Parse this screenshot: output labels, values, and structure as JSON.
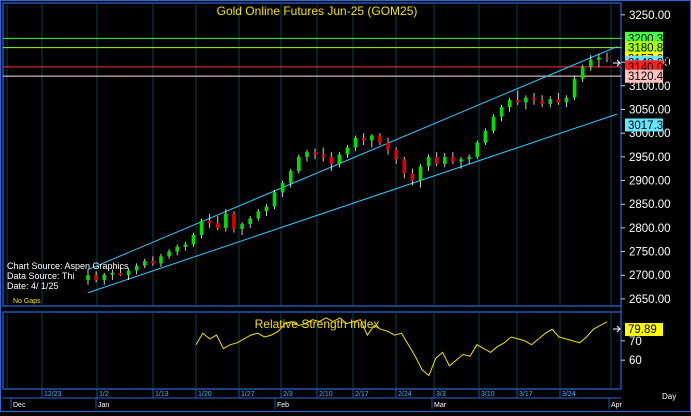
{
  "chart_title": "Gold Online Futures Jun-25 (GOM25)",
  "rsi_title": "Relative Strength Index",
  "source_lines": [
    "Chart Source: Aspen Graphics",
    "Data Source: Thi",
    "Date:   4/ 1/25"
  ],
  "no_gaps": "No Gaps",
  "period": "Day",
  "colors": {
    "border": "#2a6ad8",
    "grid": "#0a4f60",
    "up_candle": "#00e000",
    "down_candle": "#e00000",
    "channel": "#30c8ff",
    "title": "#f2e200",
    "rsi_line": "#f2e200"
  },
  "price_axis_ticks": [
    "3250.00",
    "3150.00",
    "3100.00",
    "3050.00",
    "3000.00",
    "2950.00",
    "2900.00",
    "2850.00",
    "2800.00",
    "2750.00",
    "2700.00",
    "2650.00"
  ],
  "price_labels": [
    {
      "text": "3200.33",
      "value": 3200.33,
      "bg": "#44ff44",
      "fg": "#000000",
      "line": "#33ff33"
    },
    {
      "text": "3180.83",
      "value": 3180.83,
      "bg": "#aaff00",
      "fg": "#000000",
      "line": "#9dff00"
    },
    {
      "text": "3157.60",
      "value": 3157.6,
      "bg": "#ffff00",
      "fg": "#000000",
      "line": null
    },
    {
      "text": "3149.63",
      "value": 3149.63,
      "bg": "#66e4ff",
      "fg": "#000000",
      "line": null
    },
    {
      "text": "3140.00",
      "value": 3140.0,
      "bg": "#ff2020",
      "fg": "#000000",
      "line": "#ff3030"
    },
    {
      "text": "3120.42",
      "value": 3120.42,
      "bg": "#ffc0c0",
      "fg": "#000000",
      "line": "#ffe0e0"
    },
    {
      "text": "3017.37",
      "value": 3017.37,
      "bg": "#66e4ff",
      "fg": "#000000",
      "line": null
    }
  ],
  "x_axis_dates": [
    "12/23",
    "1/2",
    "1/13",
    "1/20",
    "1/27",
    "2/3",
    "2/10",
    "2/17",
    "2/24",
    "3/3",
    "3/10",
    "3/17",
    "3/24"
  ],
  "x_axis_months": [
    "Dec",
    "Jan",
    "Feb",
    "Mar",
    "Apr"
  ],
  "rsi_ticks": [
    "70",
    "60"
  ],
  "rsi_value_label": "79.89",
  "chart_data": [
    {
      "type": "candlestick",
      "title": "Gold Online Futures Jun-25 (GOM25)",
      "ylim": [
        2635,
        3275
      ],
      "channel": {
        "upper": [
          {
            "i": 0,
            "v": 2712
          },
          {
            "i": 64,
            "v": 3170
          }
        ],
        "lower": [
          {
            "i": 0,
            "v": 2663
          },
          {
            "i": 64,
            "v": 3030
          }
        ]
      },
      "candles": [
        [
          2690,
          2712,
          2680,
          2700
        ],
        [
          2700,
          2708,
          2685,
          2690
        ],
        [
          2690,
          2705,
          2680,
          2701
        ],
        [
          2701,
          2712,
          2690,
          2705
        ],
        [
          2705,
          2716,
          2698,
          2700
        ],
        [
          2700,
          2715,
          2690,
          2710
        ],
        [
          2710,
          2725,
          2702,
          2720
        ],
        [
          2720,
          2735,
          2715,
          2730
        ],
        [
          2730,
          2740,
          2720,
          2725
        ],
        [
          2725,
          2745,
          2718,
          2740
        ],
        [
          2740,
          2755,
          2735,
          2750
        ],
        [
          2750,
          2765,
          2742,
          2760
        ],
        [
          2760,
          2770,
          2752,
          2765
        ],
        [
          2765,
          2790,
          2760,
          2785
        ],
        [
          2785,
          2820,
          2778,
          2815
        ],
        [
          2815,
          2830,
          2800,
          2810
        ],
        [
          2810,
          2825,
          2795,
          2800
        ],
        [
          2800,
          2840,
          2792,
          2830
        ],
        [
          2830,
          2835,
          2790,
          2798
        ],
        [
          2798,
          2812,
          2785,
          2808
        ],
        [
          2808,
          2825,
          2800,
          2820
        ],
        [
          2820,
          2840,
          2815,
          2835
        ],
        [
          2835,
          2850,
          2825,
          2845
        ],
        [
          2845,
          2880,
          2840,
          2875
        ],
        [
          2875,
          2900,
          2865,
          2895
        ],
        [
          2895,
          2925,
          2885,
          2920
        ],
        [
          2920,
          2955,
          2915,
          2950
        ],
        [
          2950,
          2965,
          2940,
          2960
        ],
        [
          2960,
          2968,
          2945,
          2955
        ],
        [
          2955,
          2970,
          2940,
          2950
        ],
        [
          2950,
          2960,
          2920,
          2935
        ],
        [
          2935,
          2960,
          2928,
          2955
        ],
        [
          2955,
          2975,
          2948,
          2970
        ],
        [
          2970,
          2995,
          2962,
          2990
        ],
        [
          2990,
          3000,
          2975,
          2985
        ],
        [
          2985,
          2998,
          2970,
          2995
        ],
        [
          2995,
          3000,
          2975,
          2980
        ],
        [
          2980,
          2990,
          2955,
          2965
        ],
        [
          2965,
          2970,
          2935,
          2945
        ],
        [
          2945,
          2950,
          2905,
          2915
        ],
        [
          2915,
          2925,
          2890,
          2900
        ],
        [
          2900,
          2935,
          2885,
          2930
        ],
        [
          2930,
          2955,
          2920,
          2950
        ],
        [
          2950,
          2960,
          2930,
          2935
        ],
        [
          2935,
          2958,
          2928,
          2950
        ],
        [
          2950,
          2960,
          2935,
          2940
        ],
        [
          2940,
          2950,
          2925,
          2945
        ],
        [
          2945,
          2955,
          2935,
          2950
        ],
        [
          2950,
          2985,
          2945,
          2980
        ],
        [
          2980,
          3010,
          2975,
          3005
        ],
        [
          3005,
          3040,
          3000,
          3035
        ],
        [
          3035,
          3060,
          3025,
          3055
        ],
        [
          3055,
          3075,
          3045,
          3070
        ],
        [
          3070,
          3090,
          3060,
          3065
        ],
        [
          3065,
          3080,
          3050,
          3075
        ],
        [
          3075,
          3085,
          3060,
          3070
        ],
        [
          3070,
          3080,
          3055,
          3062
        ],
        [
          3062,
          3078,
          3055,
          3072
        ],
        [
          3072,
          3085,
          3060,
          3065
        ],
        [
          3065,
          3080,
          3055,
          3075
        ],
        [
          3075,
          3120,
          3070,
          3115
        ],
        [
          3115,
          3145,
          3108,
          3140
        ],
        [
          3140,
          3165,
          3132,
          3155
        ],
        [
          3155,
          3168,
          3140,
          3160
        ],
        [
          3160,
          3170,
          3150,
          3157.6
        ]
      ]
    },
    {
      "type": "line",
      "title": "Relative Strength Index",
      "ylim": [
        45,
        85
      ],
      "series": [
        {
          "values": [
            68,
            74,
            71,
            73,
            66,
            68,
            69,
            71,
            73,
            74,
            72,
            73,
            75,
            79,
            80,
            78,
            79,
            81,
            80,
            82,
            80,
            82,
            79,
            80,
            81,
            73,
            78,
            76,
            75,
            73,
            74,
            68,
            62,
            55,
            52,
            61,
            64,
            57,
            60,
            63,
            62,
            68,
            66,
            64,
            67,
            69,
            72,
            71,
            70,
            68,
            71,
            74,
            76,
            72,
            71,
            70,
            69,
            72,
            76,
            78,
            79.89
          ]
        }
      ]
    }
  ]
}
